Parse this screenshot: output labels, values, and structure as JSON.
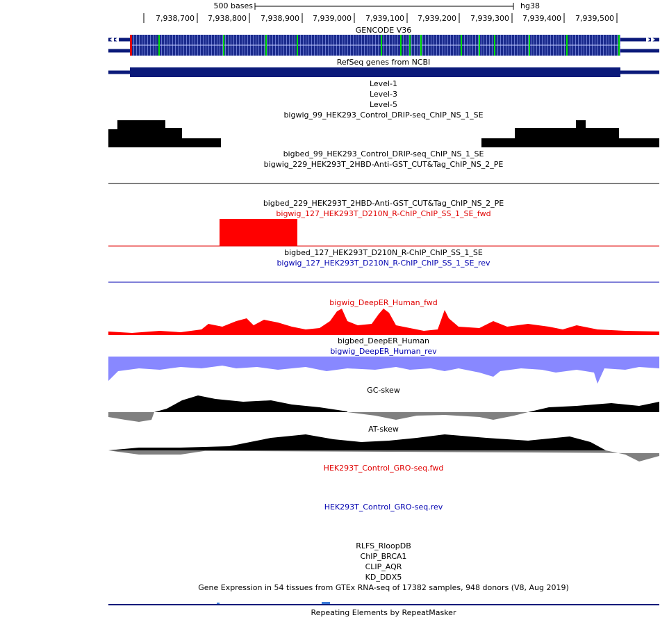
{
  "ruler": {
    "scale": "500 bases",
    "assembly": "hg38",
    "positions": [
      "7,938,700",
      "7,938,800",
      "7,938,900",
      "7,939,000",
      "7,939,100",
      "7,939,200",
      "7,939,300",
      "7,939,400",
      "7,939,500"
    ]
  },
  "tracks": [
    {
      "label": "GENCODE V36",
      "color": "#000000"
    },
    {
      "label": "RefSeq genes from NCBI",
      "color": "#000000"
    },
    {
      "label": "Level-1",
      "color": "#000000"
    },
    {
      "label": "Level-3",
      "color": "#000000"
    },
    {
      "label": "Level-5",
      "color": "#000000"
    },
    {
      "label": "bigwig_99_HEK293_Control_DRIP-seq_ChIP_NS_1_SE",
      "color": "#000000"
    },
    {
      "label": "bigbed_99_HEK293_Control_DRIP-seq_ChIP_NS_1_SE",
      "color": "#000000"
    },
    {
      "label": "bigwig_229_HEK293T_2HBD-Anti-GST_CUT&Tag_ChIP_NS_2_PE",
      "color": "#000000"
    },
    {
      "label": "bigbed_229_HEK293T_2HBD-Anti-GST_CUT&Tag_ChIP_NS_2_PE",
      "color": "#000000"
    },
    {
      "label": "bigwig_127_HEK293T_D210N_R-ChIP_ChIP_SS_1_SE_fwd",
      "color": "#e00000"
    },
    {
      "label": "bigbed_127_HEK293T_D210N_R-ChIP_ChIP_SS_1_SE",
      "color": "#000000"
    },
    {
      "label": "bigwig_127_HEK293T_D210N_R-ChIP_ChIP_SS_1_SE_rev",
      "color": "#0000b0"
    },
    {
      "label": "bigwig_DeepER_Human_fwd",
      "color": "#e00000"
    },
    {
      "label": "bigbed_DeepER_Human",
      "color": "#000000"
    },
    {
      "label": "bigwig_DeepER_Human_rev",
      "color": "#0000b0"
    },
    {
      "label": "GC-skew",
      "color": "#000000"
    },
    {
      "label": "AT-skew",
      "color": "#000000"
    },
    {
      "label": "HEK293T_Control_GRO-seq.fwd",
      "color": "#e00000"
    },
    {
      "label": "HEK293T_Control_GRO-seq.rev",
      "color": "#0000b0"
    },
    {
      "label": "RLFS_RloopDB",
      "color": "#000000"
    },
    {
      "label": "ChIP_BRCA1",
      "color": "#000000"
    },
    {
      "label": "CLIP_AQR",
      "color": "#000000"
    },
    {
      "label": "KD_DDX5",
      "color": "#000000"
    },
    {
      "label": "Gene Expression in 54 tissues from GTEx RNA-seq of 17382 samples, 948 donors (V8, Aug 2019)",
      "color": "#000000"
    },
    {
      "label": "Repeating Elements by RepeatMasker",
      "color": "#000000"
    }
  ]
}
